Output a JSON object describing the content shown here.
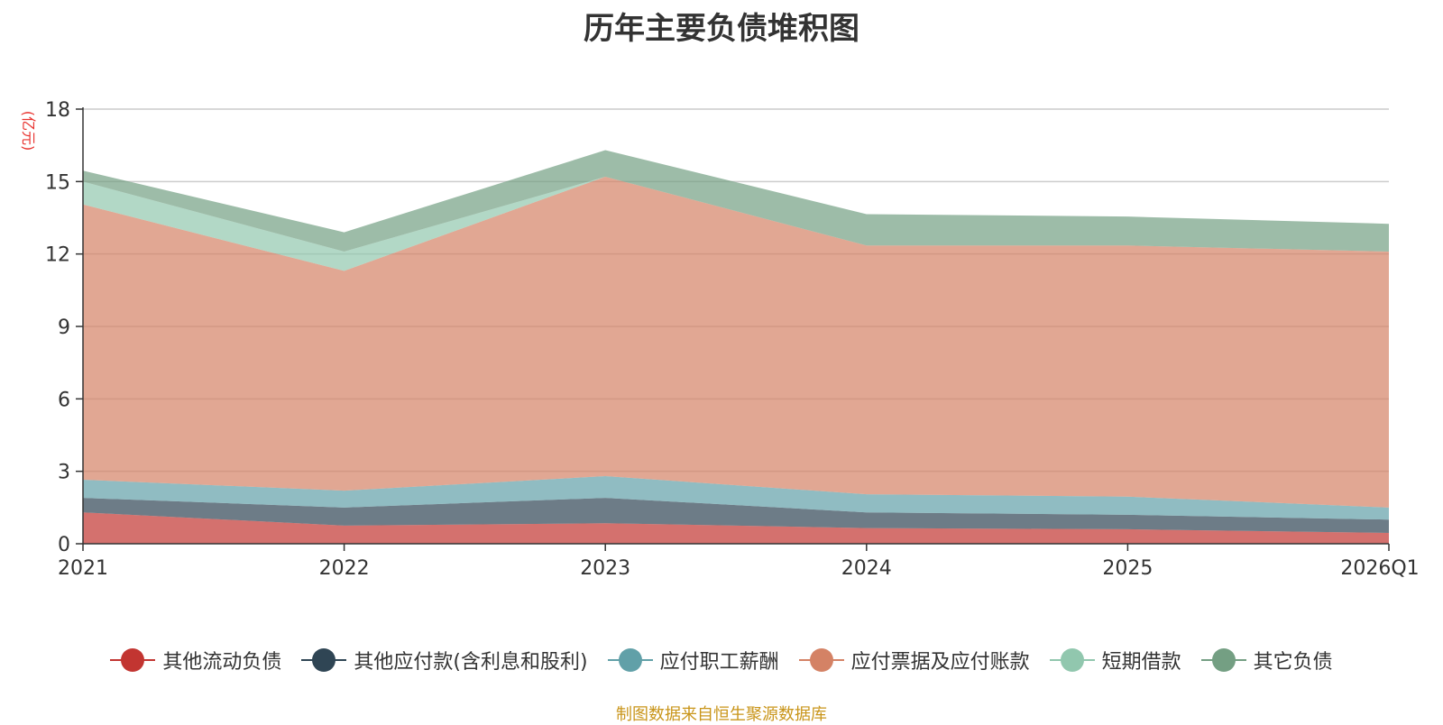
{
  "chart_data": {
    "type": "area",
    "stacked": true,
    "title": "历年主要负债堆积图",
    "ylabel": "(亿元)",
    "xlabel": "",
    "categories": [
      "2021",
      "2022",
      "2023",
      "2024",
      "2025",
      "2026Q1"
    ],
    "ylim": [
      0,
      18
    ],
    "yticks": [
      0,
      3,
      6,
      9,
      12,
      15,
      18
    ],
    "grid": true,
    "legend_position": "bottom",
    "series": [
      {
        "name": "其他流动负债",
        "color": "#c23531",
        "values": [
          1.3,
          0.75,
          0.85,
          0.65,
          0.6,
          0.45
        ]
      },
      {
        "name": "其他应付款(含利息和股利)",
        "color": "#2f4554",
        "values": [
          0.6,
          0.75,
          1.05,
          0.65,
          0.6,
          0.55
        ]
      },
      {
        "name": "应付职工薪酬",
        "color": "#61a0a8",
        "values": [
          0.75,
          0.7,
          0.9,
          0.75,
          0.75,
          0.5
        ]
      },
      {
        "name": "应付票据及应付账款",
        "color": "#d48265",
        "values": [
          11.4,
          9.1,
          12.4,
          10.3,
          10.4,
          10.6
        ]
      },
      {
        "name": "短期借款",
        "color": "#91c7ae",
        "values": [
          0.95,
          0.8,
          0.0,
          0.0,
          0.0,
          0.0
        ]
      },
      {
        "name": "其它负债",
        "color": "#749f83",
        "values": [
          0.45,
          0.8,
          1.1,
          1.3,
          1.2,
          1.15
        ]
      }
    ]
  },
  "source_note": "制图数据来自恒生聚源数据库"
}
